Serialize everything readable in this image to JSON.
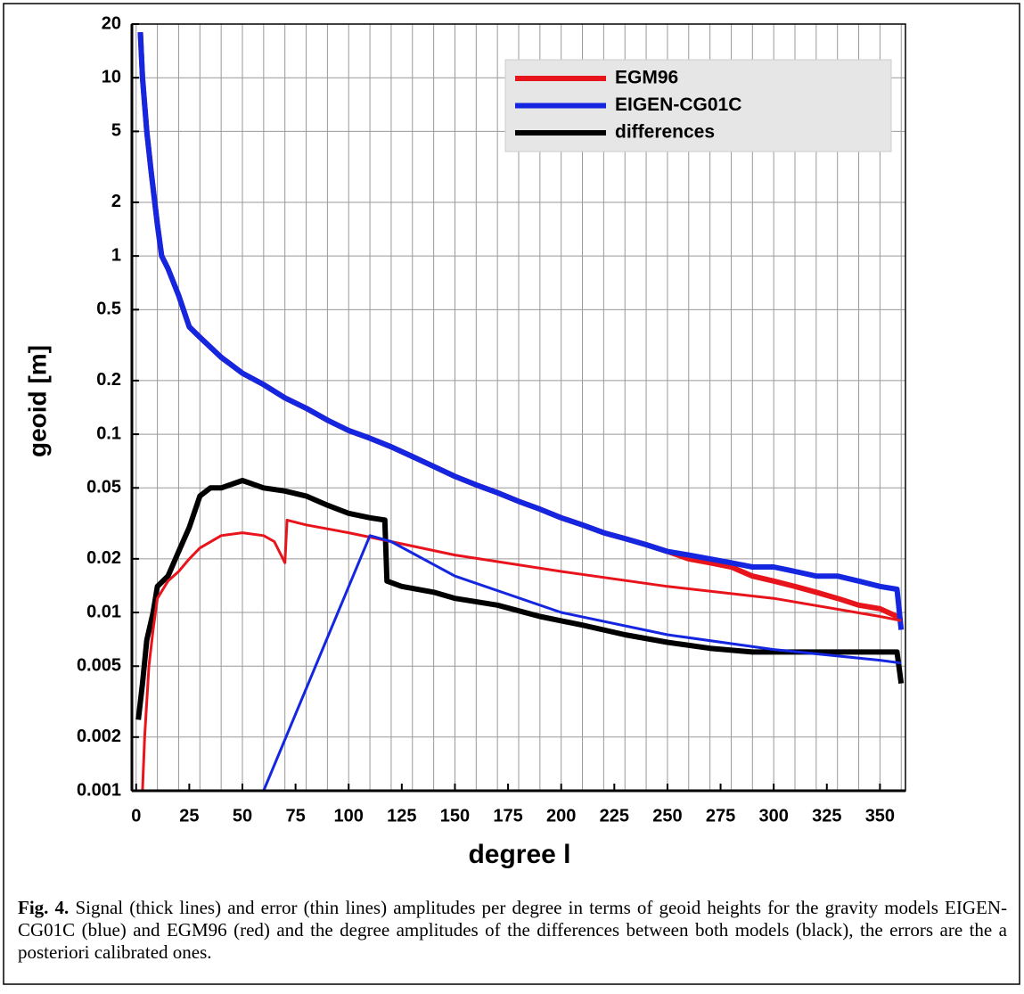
{
  "chart_data": {
    "type": "line",
    "xlabel": "degree l",
    "ylabel": "geoid [m]",
    "xlim": [
      -2,
      362
    ],
    "xticks": [
      0,
      25,
      50,
      75,
      100,
      125,
      150,
      175,
      200,
      225,
      250,
      275,
      300,
      325,
      350
    ],
    "xgrid_step": 10,
    "ylim": [
      0.001,
      20
    ],
    "yscale": "log",
    "yticks": [
      0.001,
      0.002,
      0.005,
      0.01,
      0.02,
      0.05,
      0.1,
      0.2,
      0.5,
      1,
      2,
      5,
      10,
      20
    ],
    "grid": true,
    "legend": "upper right",
    "series": [
      {
        "name": "EGM96",
        "color": "#e8141b",
        "linewidth": 6,
        "x": [
          2,
          3,
          5,
          7,
          10,
          12,
          15,
          20,
          25,
          30,
          40,
          50,
          60,
          70,
          80,
          90,
          100,
          110,
          120,
          130,
          140,
          150,
          160,
          170,
          180,
          190,
          200,
          210,
          220,
          230,
          240,
          250,
          260,
          270,
          280,
          290,
          300,
          310,
          320,
          330,
          340,
          350,
          358,
          360
        ],
        "values": [
          18,
          10,
          5,
          3,
          1.5,
          1,
          0.85,
          0.6,
          0.4,
          0.35,
          0.27,
          0.22,
          0.19,
          0.16,
          0.14,
          0.12,
          0.105,
          0.095,
          0.085,
          0.075,
          0.066,
          0.058,
          0.052,
          0.047,
          0.042,
          0.038,
          0.034,
          0.031,
          0.028,
          0.026,
          0.024,
          0.022,
          0.02,
          0.019,
          0.018,
          0.016,
          0.015,
          0.014,
          0.013,
          0.012,
          0.011,
          0.0105,
          0.0095,
          0.009
        ]
      },
      {
        "name": "EIGEN-CG01C",
        "color": "#1426e0",
        "linewidth": 6,
        "x": [
          2,
          3,
          5,
          7,
          10,
          12,
          15,
          20,
          25,
          30,
          40,
          50,
          60,
          70,
          80,
          90,
          100,
          110,
          120,
          130,
          140,
          150,
          160,
          170,
          180,
          190,
          200,
          210,
          220,
          230,
          240,
          250,
          260,
          270,
          280,
          290,
          300,
          310,
          320,
          330,
          340,
          350,
          358,
          360
        ],
        "values": [
          18,
          10,
          5,
          3,
          1.5,
          1,
          0.85,
          0.6,
          0.4,
          0.35,
          0.27,
          0.22,
          0.19,
          0.16,
          0.14,
          0.12,
          0.105,
          0.095,
          0.085,
          0.075,
          0.066,
          0.058,
          0.052,
          0.047,
          0.042,
          0.038,
          0.034,
          0.031,
          0.028,
          0.026,
          0.024,
          0.022,
          0.021,
          0.02,
          0.019,
          0.018,
          0.018,
          0.017,
          0.016,
          0.016,
          0.015,
          0.014,
          0.0135,
          0.008
        ]
      },
      {
        "name": "differences",
        "color": "#000000",
        "linewidth": 6,
        "x": [
          1,
          3,
          5,
          8,
          10,
          15,
          20,
          25,
          30,
          35,
          40,
          50,
          60,
          70,
          80,
          90,
          100,
          110,
          117,
          118,
          125,
          140,
          150,
          170,
          190,
          210,
          230,
          250,
          270,
          290,
          310,
          330,
          350,
          358,
          360
        ],
        "values": [
          0.0025,
          0.004,
          0.007,
          0.01,
          0.014,
          0.016,
          0.022,
          0.03,
          0.045,
          0.05,
          0.05,
          0.055,
          0.05,
          0.048,
          0.045,
          0.04,
          0.036,
          0.034,
          0.033,
          0.015,
          0.014,
          0.013,
          0.012,
          0.011,
          0.0095,
          0.0085,
          0.0075,
          0.0068,
          0.0063,
          0.006,
          0.006,
          0.006,
          0.006,
          0.006,
          0.004
        ]
      },
      {
        "color": "#e8141b",
        "linewidth": 3,
        "x": [
          3,
          4,
          6,
          8,
          10,
          15,
          20,
          25,
          30,
          40,
          50,
          60,
          65,
          70,
          71,
          80,
          100,
          120,
          150,
          200,
          250,
          300,
          350,
          360
        ],
        "values": [
          0.001,
          0.002,
          0.005,
          0.008,
          0.012,
          0.015,
          0.017,
          0.02,
          0.023,
          0.027,
          0.028,
          0.027,
          0.025,
          0.019,
          0.033,
          0.031,
          0.028,
          0.025,
          0.021,
          0.017,
          0.014,
          0.012,
          0.0095,
          0.009
        ]
      },
      {
        "color": "#1426e0",
        "linewidth": 3,
        "x": [
          60,
          110,
          120,
          150,
          200,
          250,
          300,
          350,
          360
        ],
        "values": [
          0.001,
          0.027,
          0.025,
          0.016,
          0.01,
          0.0075,
          0.0062,
          0.0054,
          0.0052
        ]
      }
    ]
  },
  "caption": {
    "label": "Fig. 4.",
    "text": "Signal (thick lines) and error (thin lines) amplitudes per degree in terms of geoid heights for the gravity models EIGEN-CG01C (blue) and EGM96 (red) and the degree amplitudes of the differences between both models (black), the errors are the a posteriori calibrated ones."
  }
}
